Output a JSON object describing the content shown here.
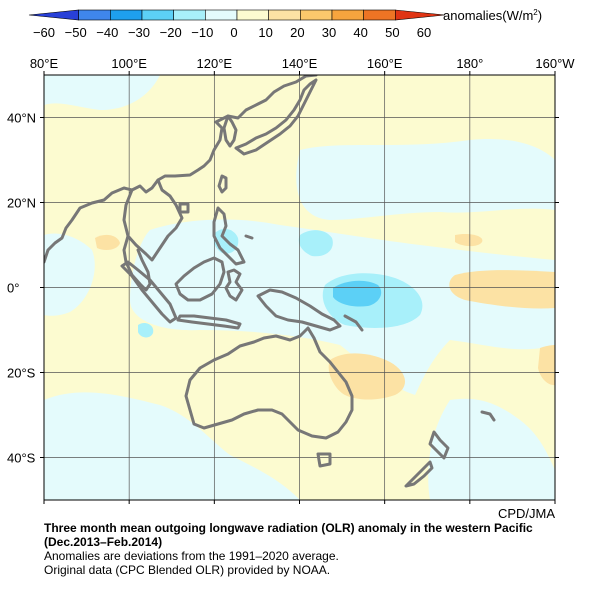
{
  "colorbar": {
    "units_label": "anomalies(W/m",
    "units_sup": "2",
    "units_close": ")",
    "ticks": [
      "−60",
      "−50",
      "−40",
      "−30",
      "−20",
      "−10",
      "0",
      "10",
      "20",
      "30",
      "40",
      "50",
      "60"
    ],
    "bins": [
      {
        "range": [
          -60,
          -50
        ],
        "color": "#2840d8"
      },
      {
        "range": [
          -50,
          -40
        ],
        "color": "#3f86ec"
      },
      {
        "range": [
          -40,
          -30
        ],
        "color": "#1ea0ee"
      },
      {
        "range": [
          -30,
          -20
        ],
        "color": "#5cd0f6"
      },
      {
        "range": [
          -20,
          -10
        ],
        "color": "#a8f0fa"
      },
      {
        "range": [
          -10,
          0
        ],
        "color": "#e4fbfc"
      },
      {
        "range": [
          0,
          10
        ],
        "color": "#fcfbd0"
      },
      {
        "range": [
          10,
          20
        ],
        "color": "#fce2a4"
      },
      {
        "range": [
          20,
          30
        ],
        "color": "#fbc86c"
      },
      {
        "range": [
          30,
          40
        ],
        "color": "#f6a43e"
      },
      {
        "range": [
          40,
          50
        ],
        "color": "#ee7424"
      },
      {
        "range": [
          50,
          60
        ],
        "color": "#e03414"
      }
    ]
  },
  "map": {
    "longitude_labels": [
      {
        "lon": 80,
        "text": "80°E"
      },
      {
        "lon": 100,
        "text": "100°E"
      },
      {
        "lon": 120,
        "text": "120°E"
      },
      {
        "lon": 140,
        "text": "140°E"
      },
      {
        "lon": 160,
        "text": "160°E"
      },
      {
        "lon": 180,
        "text": "180°"
      },
      {
        "lon": 200,
        "text": "160°W"
      }
    ],
    "latitude_labels": [
      {
        "lat": 40,
        "text": "40°N"
      },
      {
        "lat": 20,
        "text": "20°N"
      },
      {
        "lat": 0,
        "text": "0°"
      },
      {
        "lat": -20,
        "text": "20°S"
      },
      {
        "lat": -40,
        "text": "40°S"
      }
    ],
    "extent": {
      "lon": [
        80,
        200
      ],
      "lat": [
        -50,
        50
      ]
    },
    "coastline_color": "#777777",
    "gridline_color": "#555555",
    "credit": "CPD/JMA"
  },
  "caption": {
    "title_line1": "Three month mean outgoing longwave radiation (OLR) anomaly in the western Pacific",
    "title_line2": "(Dec.2013–Feb.2014)",
    "note1": "Anomalies are deviations from the 1991–2020 average.",
    "note2": "Original data (CPC Blended OLR) provided by NOAA."
  }
}
